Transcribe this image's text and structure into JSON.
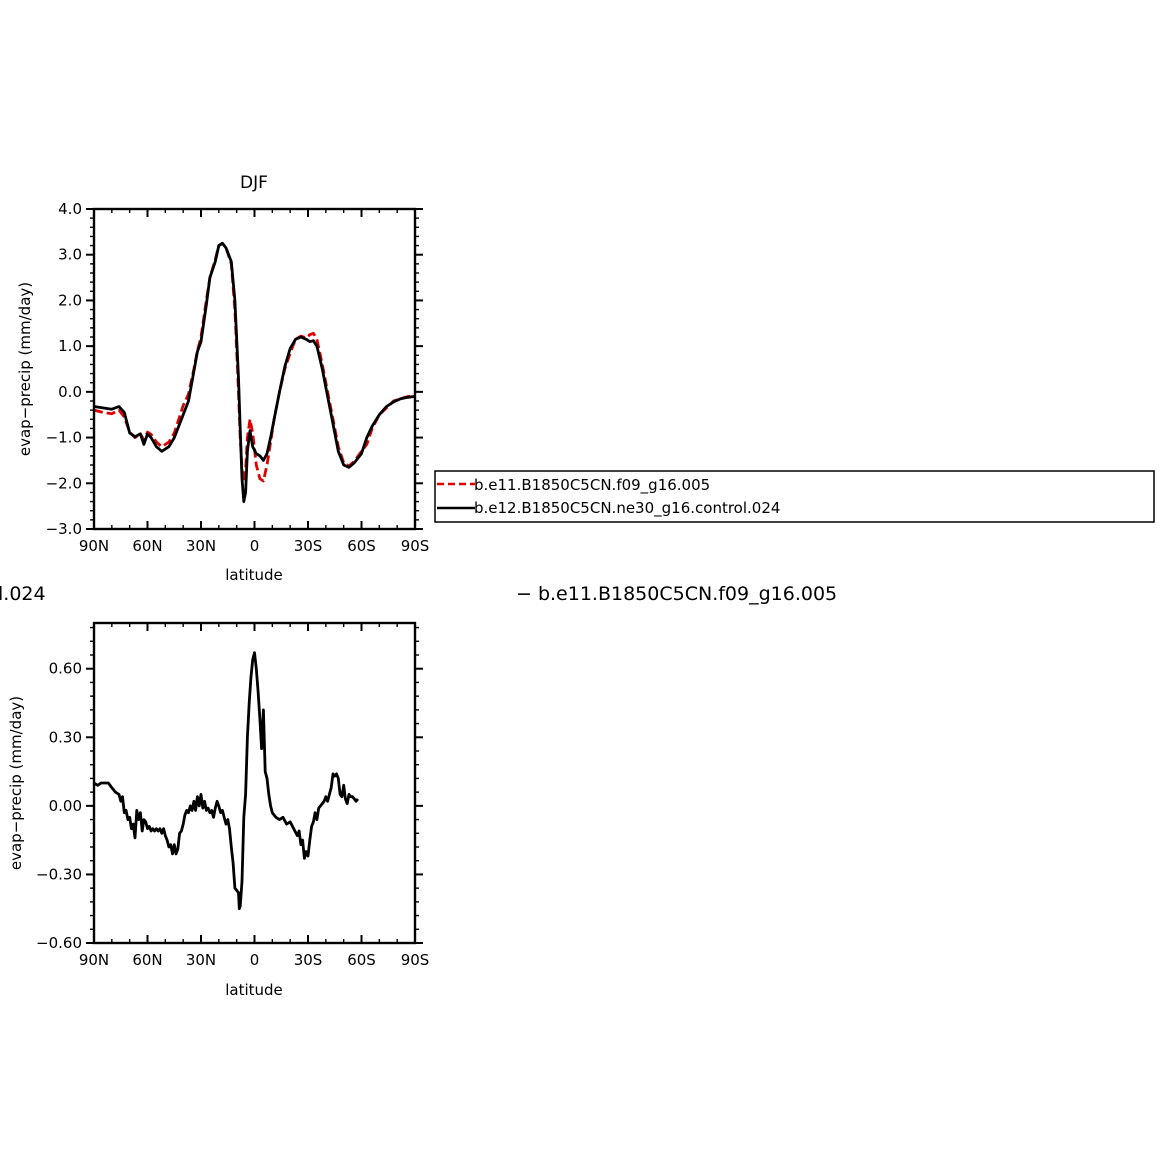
{
  "chart_data": [
    {
      "type": "line",
      "title": "DJF",
      "xlabel": "latitude",
      "ylabel": "evap−precip (mm/day)",
      "xlim": [
        90,
        -90
      ],
      "ylim": [
        -3.0,
        4.0
      ],
      "xticks": [
        90,
        60,
        30,
        0,
        -30,
        -60,
        -90
      ],
      "xtick_labels": [
        "90N",
        "60N",
        "30N",
        "0",
        "30S",
        "60S",
        "90S"
      ],
      "yticks": [
        -3,
        -2,
        -1,
        0,
        1,
        2,
        3,
        4
      ],
      "ytick_labels": [
        "−3.0",
        "−2.0",
        "−1.0",
        "0.0",
        "1.0",
        "2.0",
        "3.0",
        "4.0"
      ],
      "legend_position": "right",
      "series": [
        {
          "name": "b.e11.B1850C5CN.f09_g16.005",
          "color": "#e00000",
          "dash": true,
          "points": [
            [
              90,
              -0.4
            ],
            [
              85,
              -0.45
            ],
            [
              80,
              -0.48
            ],
            [
              76,
              -0.4
            ],
            [
              73,
              -0.55
            ],
            [
              70,
              -0.88
            ],
            [
              67,
              -1.0
            ],
            [
              64,
              -0.92
            ],
            [
              62,
              -1.05
            ],
            [
              60,
              -0.88
            ],
            [
              58,
              -0.93
            ],
            [
              55,
              -1.1
            ],
            [
              52,
              -1.2
            ],
            [
              48,
              -1.1
            ],
            [
              45,
              -0.9
            ],
            [
              40,
              -0.3
            ],
            [
              37,
              -0.05
            ],
            [
              34,
              0.5
            ],
            [
              32,
              0.9
            ],
            [
              30,
              1.2
            ],
            [
              27,
              2.0
            ],
            [
              25,
              2.5
            ],
            [
              22,
              2.9
            ],
            [
              20,
              3.2
            ],
            [
              18,
              3.25
            ],
            [
              16,
              3.15
            ],
            [
              13,
              2.8
            ],
            [
              11,
              1.8
            ],
            [
              9,
              0.0
            ],
            [
              8,
              -1.0
            ],
            [
              7,
              -1.7
            ],
            [
              6,
              -1.95
            ],
            [
              5,
              -1.7
            ],
            [
              4,
              -1.0
            ],
            [
              2.5,
              -0.6
            ],
            [
              1,
              -0.9
            ],
            [
              -1,
              -1.6
            ],
            [
              -3,
              -1.9
            ],
            [
              -5,
              -1.95
            ],
            [
              -7,
              -1.6
            ],
            [
              -9,
              -1.1
            ],
            [
              -11,
              -0.6
            ],
            [
              -14,
              0.0
            ],
            [
              -17,
              0.5
            ],
            [
              -20,
              0.85
            ],
            [
              -23,
              1.15
            ],
            [
              -26,
              1.22
            ],
            [
              -29,
              1.18
            ],
            [
              -31,
              1.25
            ],
            [
              -33,
              1.28
            ],
            [
              -35,
              1.15
            ],
            [
              -38,
              0.6
            ],
            [
              -41,
              0.0
            ],
            [
              -44,
              -0.6
            ],
            [
              -47,
              -1.2
            ],
            [
              -50,
              -1.55
            ],
            [
              -53,
              -1.62
            ],
            [
              -56,
              -1.52
            ],
            [
              -60,
              -1.3
            ],
            [
              -63,
              -1.15
            ],
            [
              -66,
              -0.8
            ],
            [
              -70,
              -0.5
            ],
            [
              -74,
              -0.35
            ],
            [
              -78,
              -0.2
            ],
            [
              -82,
              -0.15
            ],
            [
              -86,
              -0.1
            ],
            [
              -90,
              -0.1
            ]
          ]
        },
        {
          "name": "b.e12.B1850C5CN.ne30_g16.control.024",
          "color": "#000000",
          "dash": false,
          "points": [
            [
              90,
              -0.32
            ],
            [
              85,
              -0.35
            ],
            [
              80,
              -0.38
            ],
            [
              76,
              -0.32
            ],
            [
              73,
              -0.45
            ],
            [
              70,
              -0.9
            ],
            [
              67,
              -0.98
            ],
            [
              64,
              -0.92
            ],
            [
              62,
              -1.15
            ],
            [
              60,
              -0.92
            ],
            [
              58,
              -1.0
            ],
            [
              55,
              -1.2
            ],
            [
              52,
              -1.3
            ],
            [
              48,
              -1.2
            ],
            [
              45,
              -1.0
            ],
            [
              40,
              -0.5
            ],
            [
              37,
              -0.2
            ],
            [
              34,
              0.45
            ],
            [
              32,
              0.88
            ],
            [
              30,
              1.1
            ],
            [
              27,
              1.9
            ],
            [
              25,
              2.5
            ],
            [
              22,
              2.85
            ],
            [
              20,
              3.2
            ],
            [
              18,
              3.25
            ],
            [
              16,
              3.15
            ],
            [
              13,
              2.85
            ],
            [
              11,
              2.0
            ],
            [
              9,
              0.3
            ],
            [
              8,
              -0.8
            ],
            [
              7,
              -1.9
            ],
            [
              6,
              -2.4
            ],
            [
              5,
              -2.2
            ],
            [
              4,
              -1.3
            ],
            [
              2.5,
              -0.85
            ],
            [
              1,
              -1.2
            ],
            [
              -1,
              -1.35
            ],
            [
              -3,
              -1.4
            ],
            [
              -5,
              -1.5
            ],
            [
              -7,
              -1.35
            ],
            [
              -9,
              -1.0
            ],
            [
              -11,
              -0.6
            ],
            [
              -14,
              0.0
            ],
            [
              -17,
              0.55
            ],
            [
              -20,
              0.95
            ],
            [
              -23,
              1.15
            ],
            [
              -26,
              1.2
            ],
            [
              -29,
              1.15
            ],
            [
              -31,
              1.1
            ],
            [
              -33,
              1.12
            ],
            [
              -35,
              1.0
            ],
            [
              -38,
              0.5
            ],
            [
              -41,
              -0.1
            ],
            [
              -44,
              -0.7
            ],
            [
              -47,
              -1.3
            ],
            [
              -50,
              -1.6
            ],
            [
              -53,
              -1.65
            ],
            [
              -56,
              -1.55
            ],
            [
              -60,
              -1.35
            ],
            [
              -63,
              -1.0
            ],
            [
              -66,
              -0.75
            ],
            [
              -70,
              -0.5
            ],
            [
              -74,
              -0.32
            ],
            [
              -78,
              -0.22
            ],
            [
              -82,
              -0.15
            ],
            [
              -86,
              -0.12
            ],
            [
              -90,
              -0.1
            ]
          ]
        }
      ]
    },
    {
      "type": "line",
      "title": "− b.e11.B1850C5CN.f09_g16.005",
      "title_left_fragment": "l.024",
      "xlabel": "latitude",
      "ylabel": "evap−precip (mm/day)",
      "xlim": [
        90,
        -90
      ],
      "ylim": [
        -0.6,
        0.8
      ],
      "xticks": [
        90,
        60,
        30,
        0,
        -30,
        -60,
        -90
      ],
      "xtick_labels": [
        "90N",
        "60N",
        "30N",
        "0",
        "30S",
        "60S",
        "90S"
      ],
      "yticks": [
        -0.6,
        -0.3,
        0.0,
        0.3,
        0.6
      ],
      "ytick_labels": [
        "−0.60",
        "−0.30",
        "0.00",
        "0.30",
        "0.60"
      ],
      "series": [
        {
          "color": "#000000",
          "dash": false,
          "points": [
            [
              90,
              0.1
            ],
            [
              88,
              0.09
            ],
            [
              86,
              0.1
            ],
            [
              84,
              0.1
            ],
            [
              82,
              0.1
            ],
            [
              80,
              0.08
            ],
            [
              78,
              0.06
            ],
            [
              76,
              0.05
            ],
            [
              75,
              0.02
            ],
            [
              74,
              0.04
            ],
            [
              73,
              -0.03
            ],
            [
              72,
              -0.02
            ],
            [
              71,
              -0.06
            ],
            [
              70,
              -0.05
            ],
            [
              69,
              -0.1
            ],
            [
              68,
              -0.08
            ],
            [
              67,
              -0.14
            ],
            [
              66,
              -0.02
            ],
            [
              65,
              -0.06
            ],
            [
              64,
              -0.03
            ],
            [
              63,
              -0.11
            ],
            [
              62,
              -0.06
            ],
            [
              61,
              -0.07
            ],
            [
              60,
              -0.1
            ],
            [
              59,
              -0.09
            ],
            [
              58,
              -0.11
            ],
            [
              57,
              -0.1
            ],
            [
              56,
              -0.11
            ],
            [
              55,
              -0.1
            ],
            [
              54,
              -0.11
            ],
            [
              53,
              -0.1
            ],
            [
              52,
              -0.12
            ],
            [
              51,
              -0.1
            ],
            [
              50,
              -0.13
            ],
            [
              49,
              -0.15
            ],
            [
              48,
              -0.18
            ],
            [
              47,
              -0.17
            ],
            [
              46,
              -0.21
            ],
            [
              45,
              -0.17
            ],
            [
              44,
              -0.21
            ],
            [
              43,
              -0.19
            ],
            [
              42,
              -0.12
            ],
            [
              41,
              -0.11
            ],
            [
              40,
              -0.08
            ],
            [
              39,
              -0.04
            ],
            [
              38,
              -0.02
            ],
            [
              37,
              -0.03
            ],
            [
              36,
              0.0
            ],
            [
              35,
              -0.02
            ],
            [
              34,
              0.02
            ],
            [
              33,
              -0.02
            ],
            [
              32,
              0.04
            ],
            [
              31,
              0.0
            ],
            [
              30,
              0.05
            ],
            [
              29,
              -0.01
            ],
            [
              28,
              0.02
            ],
            [
              27,
              -0.02
            ],
            [
              26,
              -0.01
            ],
            [
              25,
              -0.03
            ],
            [
              24,
              -0.02
            ],
            [
              23,
              -0.05
            ],
            [
              22,
              -0.01
            ],
            [
              21,
              0.02
            ],
            [
              20,
              0.0
            ],
            [
              19,
              -0.03
            ],
            [
              18,
              -0.02
            ],
            [
              17,
              -0.05
            ],
            [
              16,
              -0.08
            ],
            [
              15,
              -0.06
            ],
            [
              14,
              -0.1
            ],
            [
              13,
              -0.18
            ],
            [
              12,
              -0.25
            ],
            [
              11,
              -0.36
            ],
            [
              10,
              -0.37
            ],
            [
              9,
              -0.38
            ],
            [
              8.5,
              -0.45
            ],
            [
              8,
              -0.44
            ],
            [
              7,
              -0.33
            ],
            [
              6,
              -0.05
            ],
            [
              5,
              0.05
            ],
            [
              4,
              0.3
            ],
            [
              3,
              0.45
            ],
            [
              2,
              0.56
            ],
            [
              1,
              0.64
            ],
            [
              0,
              0.67
            ],
            [
              -1,
              0.6
            ],
            [
              -2,
              0.5
            ],
            [
              -3,
              0.38
            ],
            [
              -4,
              0.25
            ],
            [
              -5,
              0.42
            ],
            [
              -6,
              0.15
            ],
            [
              -7,
              0.12
            ],
            [
              -8,
              0.05
            ],
            [
              -9,
              0.0
            ],
            [
              -10,
              -0.03
            ],
            [
              -12,
              -0.05
            ],
            [
              -14,
              -0.06
            ],
            [
              -16,
              -0.05
            ],
            [
              -18,
              -0.08
            ],
            [
              -20,
              -0.07
            ],
            [
              -22,
              -0.1
            ],
            [
              -24,
              -0.13
            ],
            [
              -25,
              -0.11
            ],
            [
              -26,
              -0.17
            ],
            [
              -27,
              -0.15
            ],
            [
              -28,
              -0.23
            ],
            [
              -29,
              -0.2
            ],
            [
              -30,
              -0.22
            ],
            [
              -31,
              -0.15
            ],
            [
              -32,
              -0.09
            ],
            [
              -33,
              -0.07
            ],
            [
              -34,
              -0.03
            ],
            [
              -35,
              -0.06
            ],
            [
              -36,
              -0.01
            ],
            [
              -37,
              0.0
            ],
            [
              -38,
              0.01
            ],
            [
              -39,
              0.02
            ],
            [
              -40,
              0.04
            ],
            [
              -41,
              0.02
            ],
            [
              -42,
              0.05
            ],
            [
              -43,
              0.08
            ],
            [
              -44,
              0.14
            ],
            [
              -45,
              0.13
            ],
            [
              -46,
              0.14
            ],
            [
              -47,
              0.12
            ],
            [
              -48,
              0.05
            ],
            [
              -49,
              0.04
            ],
            [
              -50,
              0.09
            ],
            [
              -51,
              0.03
            ],
            [
              -52,
              0.01
            ],
            [
              -53,
              0.05
            ],
            [
              -54,
              0.04
            ],
            [
              -55,
              0.04
            ],
            [
              -56,
              0.03
            ],
            [
              -57,
              0.02
            ],
            [
              -58,
              0.03
            ]
          ]
        }
      ]
    }
  ]
}
